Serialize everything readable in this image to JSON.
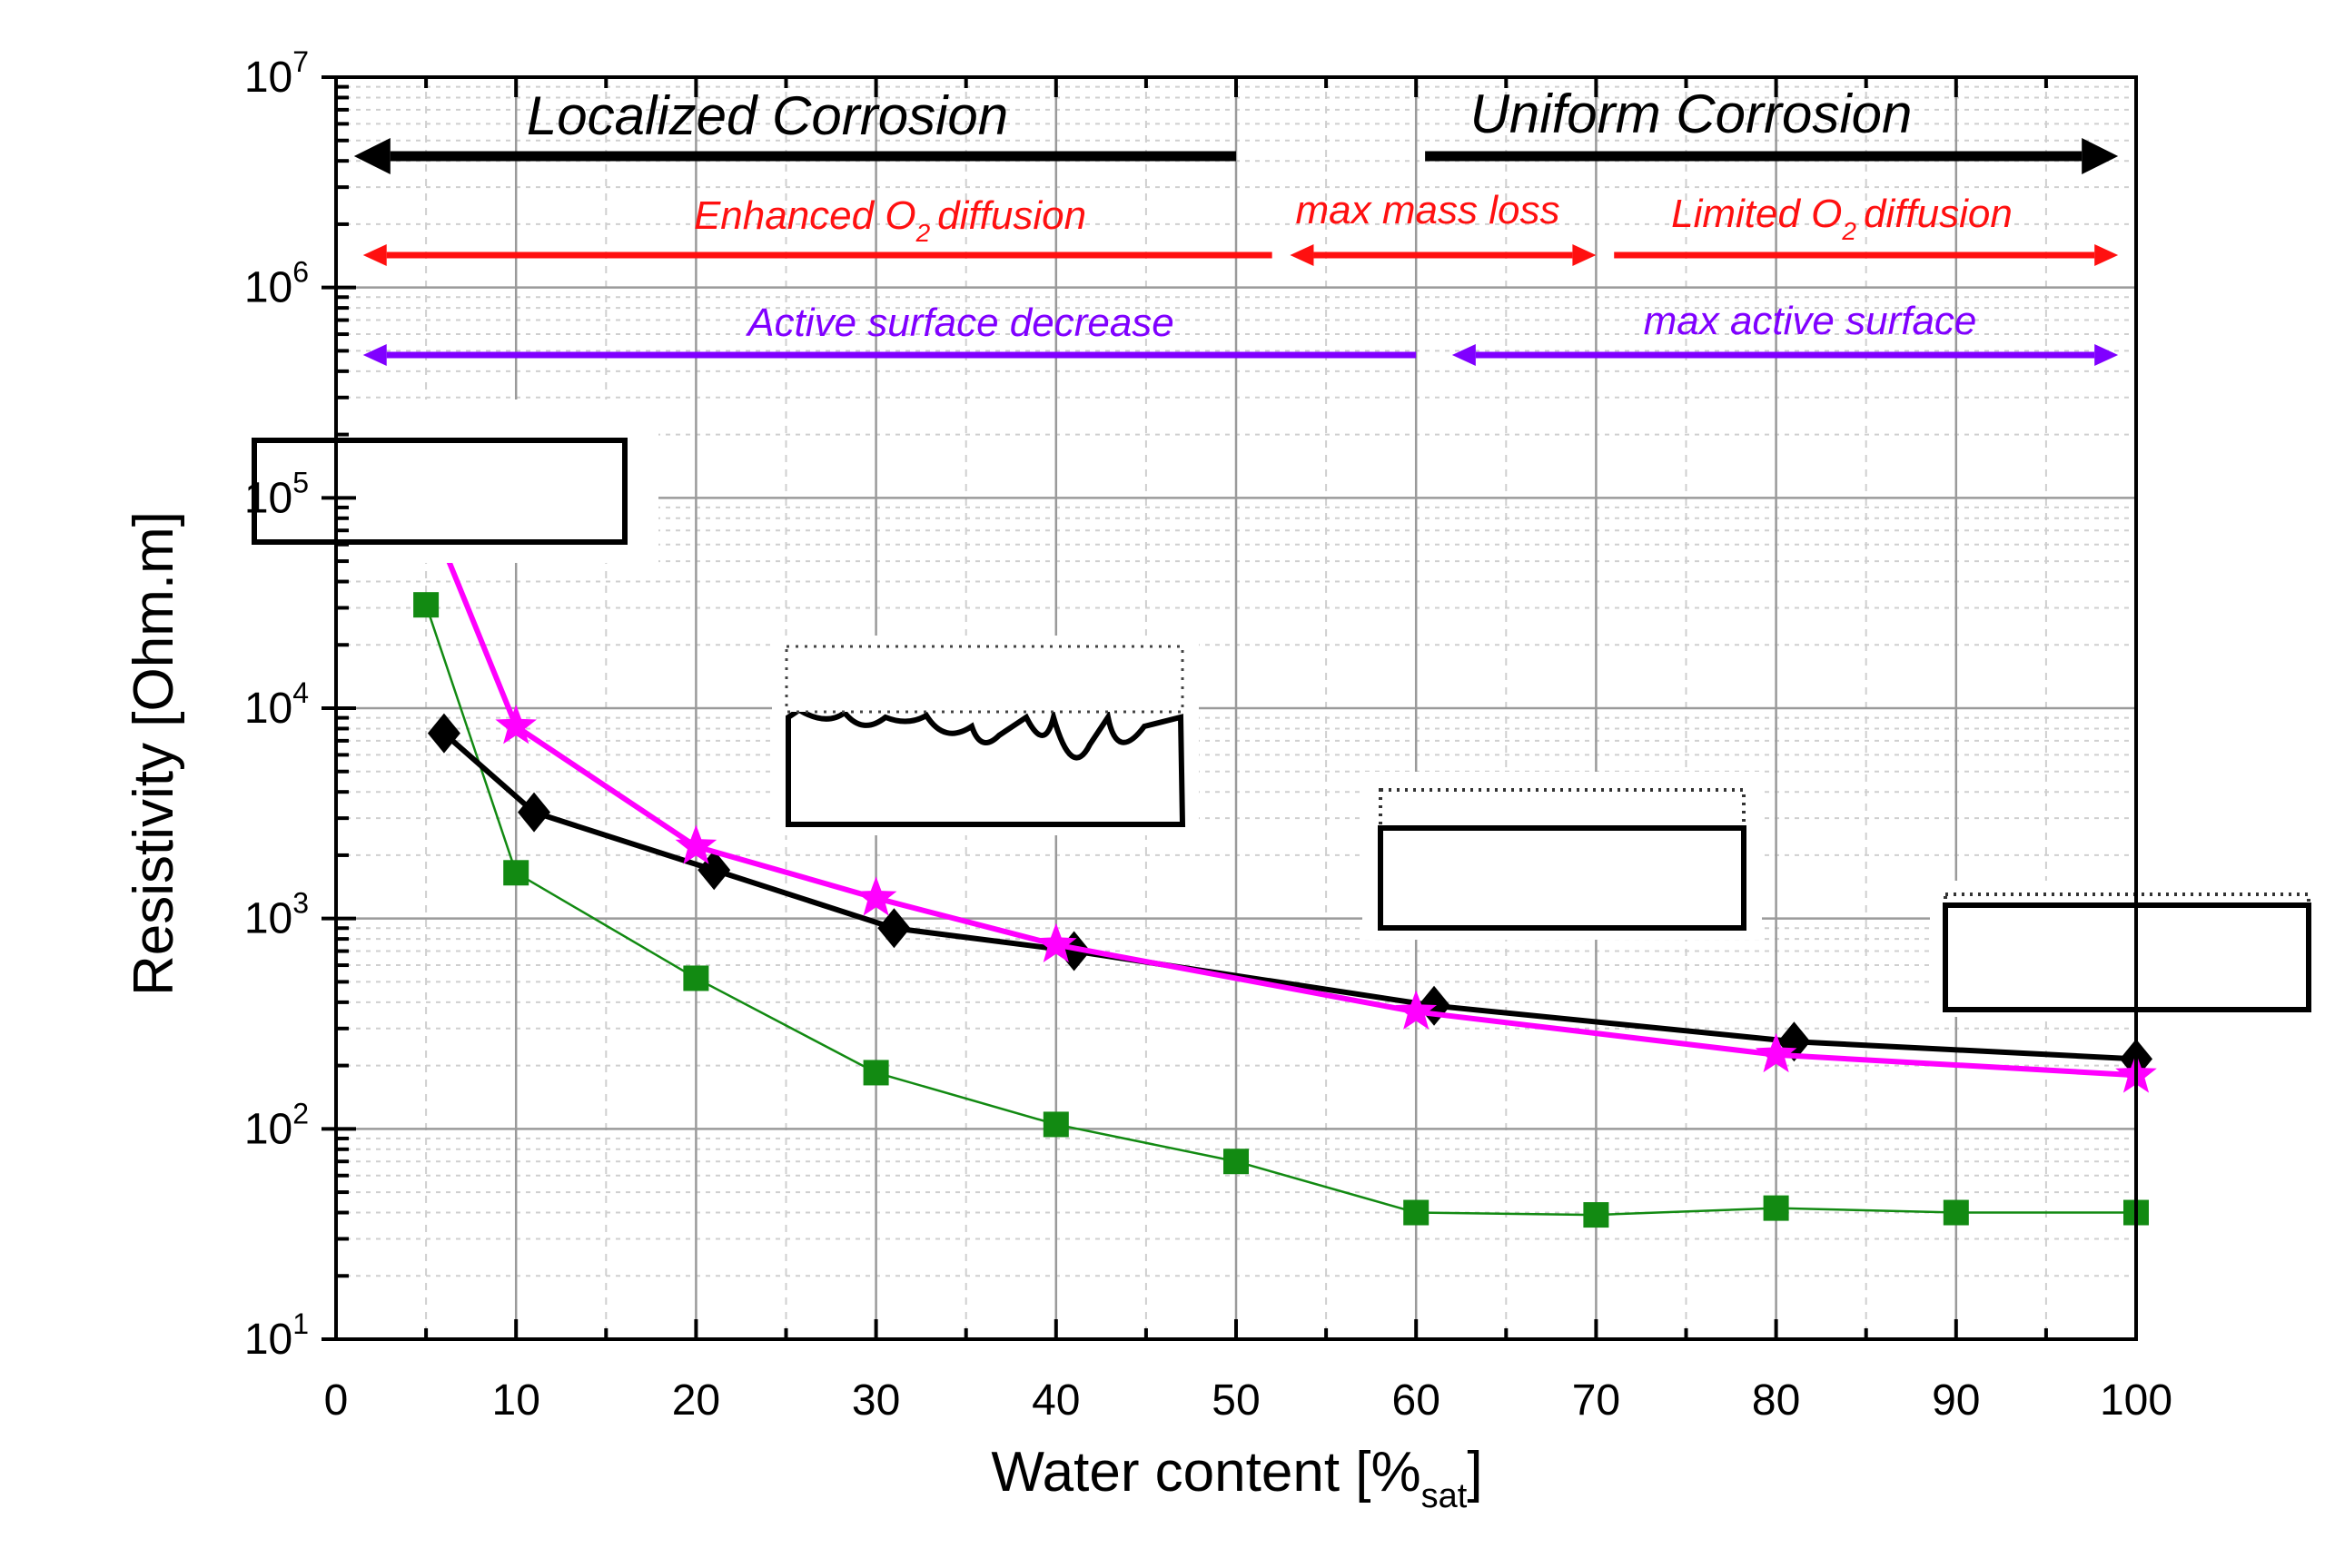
{
  "chart_data": {
    "type": "line",
    "xlabel": "Water content [%",
    "xlabel_sub": "sat",
    "xlabel_end": "]",
    "ylabel": "Resistivity [Ohm.m]",
    "xlim": [
      0,
      100
    ],
    "ylim": [
      10,
      10000000
    ],
    "yscale": "log",
    "grid": true,
    "x_ticks": [
      "0",
      "10",
      "20",
      "30",
      "40",
      "50",
      "60",
      "70",
      "80",
      "90",
      "100"
    ],
    "y_ticks": [
      {
        "base": "10",
        "exp": "1"
      },
      {
        "base": "10",
        "exp": "2"
      },
      {
        "base": "10",
        "exp": "3"
      },
      {
        "base": "10",
        "exp": "4"
      },
      {
        "base": "10",
        "exp": "5"
      },
      {
        "base": "10",
        "exp": "6"
      },
      {
        "base": "10",
        "exp": "7"
      }
    ],
    "series": [
      {
        "name": "green-squares",
        "color": "#128a12",
        "marker": "square",
        "x": [
          5,
          10,
          20,
          30,
          40,
          50,
          60,
          70,
          80,
          90,
          100
        ],
        "y": [
          31000,
          1650,
          520,
          185,
          105,
          70,
          40,
          39,
          42,
          40,
          40
        ]
      },
      {
        "name": "black-diamonds",
        "color": "#000000",
        "marker": "diamond",
        "x": [
          6,
          11,
          21,
          31,
          41,
          61,
          81,
          100
        ],
        "y": [
          7600,
          3200,
          1700,
          900,
          700,
          385,
          260,
          215
        ]
      },
      {
        "name": "magenta-stars",
        "color": "#ff00ff",
        "marker": "star",
        "x": [
          4,
          10,
          20,
          30,
          40,
          60,
          80,
          100
        ],
        "y": [
          150000,
          8200,
          2200,
          1250,
          750,
          360,
          225,
          180
        ]
      }
    ],
    "annotations": {
      "localized": "Localized Corrosion",
      "uniform": "Uniform Corrosion",
      "enhanced_a": "Enhanced O",
      "enhanced_sub": "2",
      "enhanced_b": "diffusion",
      "max_mass_loss": "max mass loss",
      "limited_a": "Limited O",
      "limited_sub": "2",
      "limited_b": "diffusion",
      "active_decrease": "Active surface decrease",
      "max_active": "max active surface"
    },
    "arrows": [
      {
        "color": "#000000",
        "y": 4200000,
        "from": 1,
        "to": 50,
        "heads": "left"
      },
      {
        "color": "#000000",
        "y": 4200000,
        "from": 60.5,
        "to": 99,
        "heads": "right"
      },
      {
        "color": "#ff1010",
        "y": 1400000,
        "from": 1.5,
        "to": 52,
        "heads": "left"
      },
      {
        "color": "#ff1010",
        "y": 1400000,
        "from": 53,
        "to": 70,
        "heads": "both"
      },
      {
        "color": "#ff1010",
        "y": 1400000,
        "from": 71,
        "to": 99,
        "heads": "right"
      },
      {
        "color": "#8000ff",
        "y": 480000,
        "from": 1.5,
        "to": 60,
        "heads": "left"
      },
      {
        "color": "#8000ff",
        "y": 480000,
        "from": 62,
        "to": 99,
        "heads": "both"
      }
    ]
  }
}
